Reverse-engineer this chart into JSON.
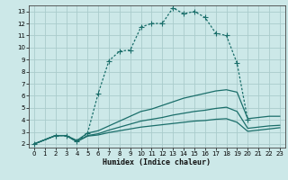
{
  "bg_color": "#cce8e8",
  "grid_color": "#aacccc",
  "line_color": "#1a6e6a",
  "xlabel": "Humidex (Indice chaleur)",
  "xlim": [
    -0.5,
    23.5
  ],
  "ylim": [
    1.7,
    13.5
  ],
  "xticks": [
    0,
    1,
    2,
    3,
    4,
    5,
    6,
    7,
    8,
    9,
    10,
    11,
    12,
    13,
    14,
    15,
    16,
    17,
    18,
    19,
    20,
    21,
    22,
    23
  ],
  "yticks": [
    2,
    3,
    4,
    5,
    6,
    7,
    8,
    9,
    10,
    11,
    12,
    13
  ],
  "series": [
    {
      "x": [
        0,
        2,
        3,
        4,
        5,
        6,
        7,
        8,
        9,
        10,
        11,
        12,
        13,
        14,
        15,
        16,
        17,
        18,
        19,
        20
      ],
      "y": [
        2.0,
        2.7,
        2.7,
        2.2,
        2.9,
        6.2,
        8.9,
        9.7,
        9.8,
        11.7,
        12.0,
        12.0,
        13.3,
        12.8,
        13.0,
        12.5,
        11.2,
        11.0,
        8.7,
        4.0
      ],
      "style": "dotted",
      "marker": "+"
    },
    {
      "x": [
        0,
        2,
        3,
        4,
        5,
        6,
        7,
        8,
        9,
        10,
        11,
        12,
        13,
        14,
        15,
        16,
        17,
        18,
        19,
        20,
        21,
        22,
        23
      ],
      "y": [
        2.0,
        2.7,
        2.7,
        2.3,
        2.9,
        3.1,
        3.5,
        3.9,
        4.3,
        4.7,
        4.9,
        5.2,
        5.5,
        5.8,
        6.0,
        6.2,
        6.4,
        6.5,
        6.3,
        4.1,
        4.2,
        4.3,
        4.3
      ],
      "style": "solid",
      "marker": null
    },
    {
      "x": [
        0,
        2,
        3,
        4,
        5,
        6,
        7,
        8,
        9,
        10,
        11,
        12,
        13,
        14,
        15,
        16,
        17,
        18,
        19,
        20,
        21,
        22,
        23
      ],
      "y": [
        2.0,
        2.7,
        2.7,
        2.2,
        2.7,
        2.85,
        3.15,
        3.4,
        3.65,
        3.9,
        4.05,
        4.2,
        4.4,
        4.55,
        4.7,
        4.8,
        4.95,
        5.05,
        4.7,
        3.3,
        3.4,
        3.5,
        3.55
      ],
      "style": "solid",
      "marker": null
    },
    {
      "x": [
        0,
        2,
        3,
        4,
        5,
        6,
        7,
        8,
        9,
        10,
        11,
        12,
        13,
        14,
        15,
        16,
        17,
        18,
        19,
        20,
        21,
        22,
        23
      ],
      "y": [
        2.0,
        2.7,
        2.7,
        2.2,
        2.65,
        2.75,
        2.95,
        3.1,
        3.25,
        3.4,
        3.5,
        3.6,
        3.7,
        3.8,
        3.9,
        3.95,
        4.05,
        4.1,
        3.8,
        3.05,
        3.15,
        3.25,
        3.35
      ],
      "style": "solid",
      "marker": null
    }
  ]
}
